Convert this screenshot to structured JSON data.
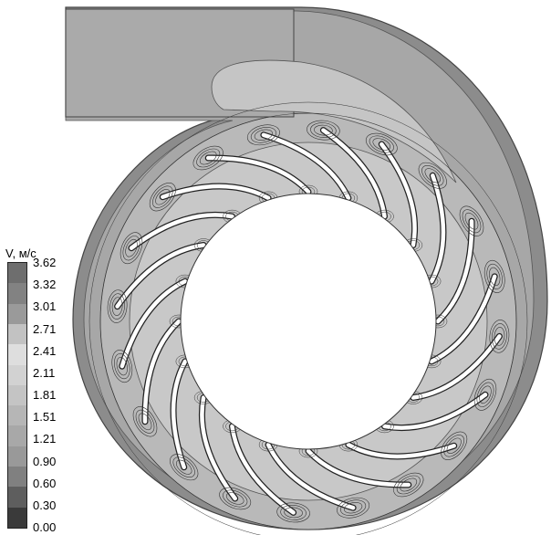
{
  "legend": {
    "title": "V, м/с",
    "ticks": [
      "3.62",
      "3.32",
      "3.01",
      "2.71",
      "2.41",
      "2.11",
      "1.81",
      "1.51",
      "1.21",
      "0.90",
      "0.60",
      "0.30",
      "0.00"
    ],
    "colors": [
      "#6e6e6e",
      "#828282",
      "#9a9a9a",
      "#c2c2c2",
      "#dedede",
      "#d2d2d2",
      "#c4c4c4",
      "#b6b6b6",
      "#a8a8a8",
      "#999999",
      "#808080",
      "#5e5e5e",
      "#3a3a3a"
    ]
  },
  "colors": {
    "casing_outer": "#8c8c8c",
    "casing_mid": "#a7a7a7",
    "casing_inner": "#b9b9b9",
    "blade_zone": "#c8c8c8",
    "outlet": "#aaaaaa",
    "outlet_light": "#c5c5c5",
    "blade": "#ffffff",
    "contour_line": "#333333"
  },
  "impeller": {
    "blade_count": 20
  }
}
